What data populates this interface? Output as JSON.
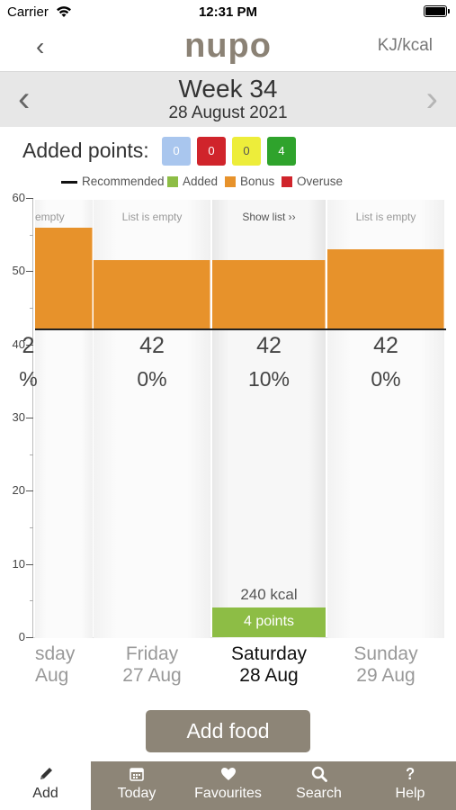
{
  "status_bar": {
    "carrier": "Carrier",
    "time": "12:31 PM"
  },
  "nav": {
    "back_glyph": "‹",
    "logo": "nupo",
    "unit_toggle": "KJ/kcal"
  },
  "week": {
    "prev_glyph": "‹",
    "next_glyph": "›",
    "title": "Week 34",
    "date": "28 August 2021"
  },
  "added_points": {
    "label": "Added points:",
    "badges": [
      {
        "value": "0",
        "color": "#a9c6ee",
        "text_color": "#ffffff"
      },
      {
        "value": "0",
        "color": "#d0242b",
        "text_color": "#ffffff"
      },
      {
        "value": "0",
        "color": "#eded3a",
        "text_color": "#555555"
      },
      {
        "value": "4",
        "color": "#2fa32c",
        "text_color": "#ffffff"
      }
    ]
  },
  "legend": [
    {
      "label": "Recommended",
      "color": "#111111"
    },
    {
      "label": "Added",
      "color": "#8dbd45"
    },
    {
      "label": "Bonus",
      "color": "#e7922b"
    },
    {
      "label": "Overuse",
      "color": "#d0242b"
    }
  ],
  "chart_data": {
    "type": "bar",
    "ylim": [
      0,
      60
    ],
    "yticks": [
      "60",
      "50",
      "40",
      "30",
      "20",
      "10",
      "0"
    ],
    "recommended": 42,
    "days": [
      {
        "day": "sday",
        "date": "Aug",
        "list_text": "empty",
        "bonus_top": 56,
        "recommended": "2",
        "percent": "%",
        "added_points": 0,
        "selected": false
      },
      {
        "day": "Friday",
        "date": "27 Aug",
        "list_text": "List is empty",
        "bonus_top": 51.5,
        "recommended": "42",
        "percent": "0%",
        "added_points": 0,
        "selected": false
      },
      {
        "day": "Saturday",
        "date": "28 Aug",
        "list_text": "Show list ››",
        "bonus_top": 51.5,
        "recommended": "42",
        "percent": "10%",
        "added_points": 4,
        "added_label": "4 points",
        "kcal": "240 kcal",
        "selected": true
      },
      {
        "day": "Sunday",
        "date": "29 Aug",
        "list_text": "List is empty",
        "bonus_top": 53,
        "recommended": "42",
        "percent": "0%",
        "added_points": 0,
        "selected": false
      }
    ]
  },
  "add_food_label": "Add food",
  "tabs": [
    {
      "label": "Add",
      "icon": "pencil-icon",
      "active": true
    },
    {
      "label": "Today",
      "icon": "calendar-icon",
      "active": false
    },
    {
      "label": "Favourites",
      "icon": "heart-icon",
      "active": false
    },
    {
      "label": "Search",
      "icon": "search-icon",
      "active": false
    },
    {
      "label": "Help",
      "icon": "help-icon",
      "active": false
    }
  ]
}
